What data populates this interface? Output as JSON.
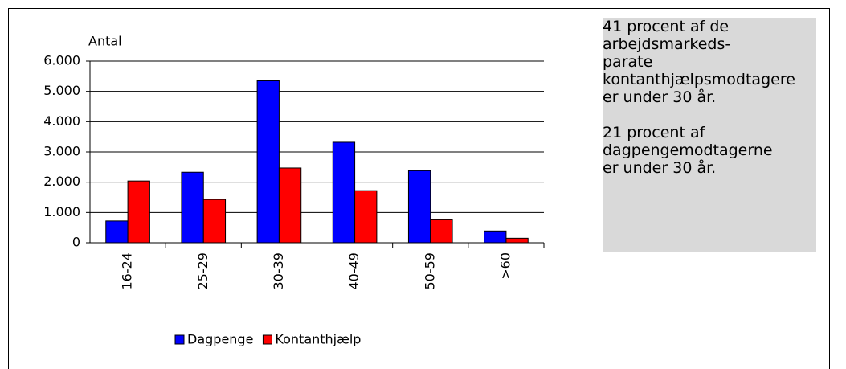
{
  "chart_data": {
    "type": "bar",
    "y_label": "Antal",
    "categories": [
      "16-24",
      "25-29",
      "30-39",
      "40-49",
      "50-59",
      ">60"
    ],
    "series": [
      {
        "name": "Dagpenge",
        "color": "#0000ff",
        "values": [
          720,
          2330,
          5350,
          3320,
          2380,
          390
        ]
      },
      {
        "name": "Kontanthjælp",
        "color": "#ff0000",
        "values": [
          2040,
          1430,
          2470,
          1720,
          760,
          150
        ]
      }
    ],
    "ylim": [
      0,
      6000
    ],
    "yticks": [
      0,
      {
        "value": 1000,
        "label": "1.000"
      },
      {
        "value": 2000,
        "label": "2.000"
      },
      {
        "value": 3000,
        "label": "3.000"
      },
      {
        "value": 4000,
        "label": "4.000"
      },
      {
        "value": 5000,
        "label": "5.000"
      },
      {
        "value": 6000,
        "label": "6.000"
      }
    ],
    "grid": true,
    "legend": "bottom"
  },
  "text_box": {
    "paragraphs": [
      [
        "41 procent af de",
        "arbejdsmarkeds-",
        "parate",
        "kontanthjælpsmodtagere",
        "er under 30 år."
      ],
      [
        "21 procent af",
        "dagpengemodtagerne",
        "er under 30 år."
      ]
    ]
  }
}
